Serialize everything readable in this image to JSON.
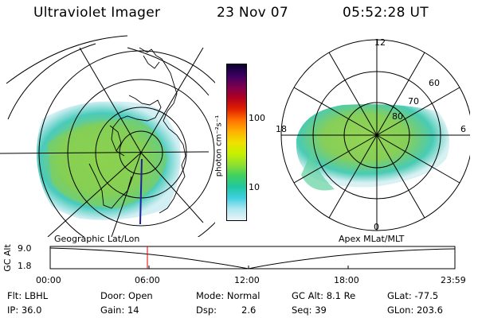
{
  "header": {
    "title": "Ultraviolet Imager",
    "date": "23 Nov 07",
    "time": "05:52:28 UT"
  },
  "maps": {
    "left_caption": "Geographic Lat/Lon",
    "right_caption": "Apex MLat/MLT",
    "right_labels": {
      "mlt_top": "12",
      "mlt_left": "18",
      "mlt_right": "6",
      "mlt_bottom": "0",
      "lat_60": "60",
      "lat_70": "70",
      "lat_80": "80"
    }
  },
  "colorbar": {
    "unit_label": "photon cm⁻²s⁻¹",
    "tick_100": "100",
    "tick_10": "10",
    "colors": [
      "#0a0030",
      "#3a0060",
      "#7a0050",
      "#b00020",
      "#e02000",
      "#ff7000",
      "#ffb000",
      "#f0e000",
      "#c8f000",
      "#90e030",
      "#40d060",
      "#20c8a0",
      "#40d0e0",
      "#b0e8f0",
      "#e8f4f8"
    ]
  },
  "altitude_plot": {
    "ylabel": "GC Alt",
    "ytick_top": "9.0",
    "ytick_bottom": "1.8",
    "xticks": [
      "00:00",
      "06:00",
      "12:00",
      "18:00",
      "23:59"
    ],
    "marker_time": "05:52"
  },
  "status": {
    "flt": "Flt: LBHL",
    "ip": "IP: 36.0",
    "door": "Door: Open",
    "gain": "Gain: 14",
    "mode": "Mode: Normal",
    "dsp": "Dsp:",
    "dsp_val": "2.6",
    "gcalt": "GC Alt: 8.1 Re",
    "seq": "Seq: 39",
    "glat": "GLat: -77.5",
    "glon": "GLon: 203.6"
  }
}
